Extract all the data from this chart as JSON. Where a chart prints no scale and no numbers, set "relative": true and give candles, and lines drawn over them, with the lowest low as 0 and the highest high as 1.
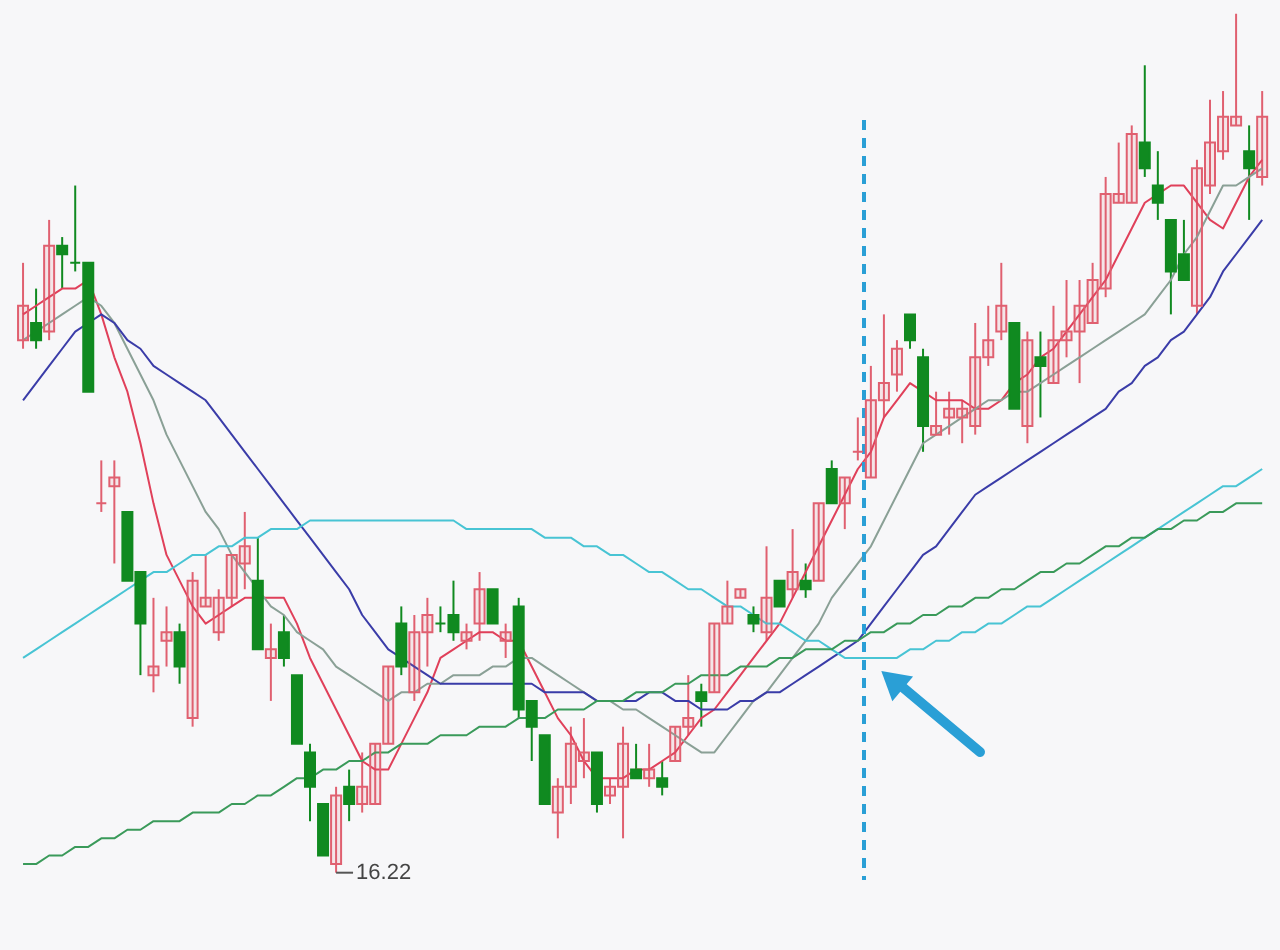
{
  "chart_data": {
    "type": "candlestick",
    "relative": true,
    "tick_labels": false,
    "categories": [
      null,
      null,
      null,
      null,
      null,
      null,
      null,
      null,
      null,
      null,
      null,
      null,
      null,
      null,
      null,
      null,
      null,
      null,
      null,
      null,
      null,
      null,
      null,
      null,
      null,
      null,
      null,
      null,
      null,
      null,
      null,
      null,
      null,
      null,
      null,
      null,
      null,
      null,
      null,
      null,
      null,
      null,
      null,
      null,
      null,
      null,
      null,
      null,
      null,
      null,
      null,
      null,
      null,
      null,
      null,
      null,
      null,
      null,
      null,
      null,
      null,
      null,
      null,
      null,
      null,
      null,
      null,
      null,
      null,
      null,
      null,
      null,
      null,
      null,
      null,
      null,
      null,
      null,
      null,
      null,
      null,
      null,
      null,
      null,
      null,
      null,
      null,
      null,
      null,
      null,
      null,
      null,
      null,
      null,
      null,
      null
    ],
    "ohlc": [
      [
        0.62,
        0.71,
        0.61,
        0.66
      ],
      [
        0.64,
        0.68,
        0.61,
        0.62
      ],
      [
        0.63,
        0.76,
        0.62,
        0.73
      ],
      [
        0.73,
        0.74,
        0.68,
        0.72
      ],
      [
        0.71,
        0.8,
        0.7,
        0.71
      ],
      [
        0.71,
        0.71,
        0.56,
        0.56
      ],
      [
        0.43,
        0.48,
        0.42,
        0.43
      ],
      [
        0.45,
        0.48,
        0.36,
        0.46
      ],
      [
        0.42,
        0.42,
        0.34,
        0.34
      ],
      [
        0.35,
        0.35,
        0.23,
        0.29
      ],
      [
        0.23,
        0.32,
        0.21,
        0.24
      ],
      [
        0.27,
        0.31,
        0.24,
        0.28
      ],
      [
        0.28,
        0.29,
        0.22,
        0.24
      ],
      [
        0.18,
        0.35,
        0.17,
        0.34
      ],
      [
        0.31,
        0.37,
        0.31,
        0.32
      ],
      [
        0.28,
        0.33,
        0.27,
        0.32
      ],
      [
        0.32,
        0.37,
        0.31,
        0.37
      ],
      [
        0.36,
        0.42,
        0.33,
        0.38
      ],
      [
        0.34,
        0.39,
        0.26,
        0.26
      ],
      [
        0.25,
        0.29,
        0.2,
        0.26
      ],
      [
        0.28,
        0.3,
        0.24,
        0.25
      ],
      [
        0.23,
        0.23,
        0.15,
        0.15
      ],
      [
        0.14,
        0.15,
        0.06,
        0.1
      ],
      [
        0.08,
        0.08,
        0.02,
        0.02
      ],
      [
        0.01,
        0.1,
        0.0,
        0.09
      ],
      [
        0.1,
        0.12,
        0.06,
        0.08
      ],
      [
        0.08,
        0.14,
        0.07,
        0.1
      ],
      [
        0.08,
        0.15,
        0.08,
        0.15
      ],
      [
        0.15,
        0.24,
        0.15,
        0.24
      ],
      [
        0.29,
        0.31,
        0.23,
        0.24
      ],
      [
        0.21,
        0.3,
        0.2,
        0.28
      ],
      [
        0.28,
        0.32,
        0.24,
        0.3
      ],
      [
        0.29,
        0.31,
        0.28,
        0.29
      ],
      [
        0.3,
        0.34,
        0.27,
        0.28
      ],
      [
        0.27,
        0.29,
        0.26,
        0.28
      ],
      [
        0.29,
        0.35,
        0.27,
        0.33
      ],
      [
        0.33,
        0.33,
        0.29,
        0.29
      ],
      [
        0.27,
        0.29,
        0.25,
        0.28
      ],
      [
        0.31,
        0.32,
        0.18,
        0.19
      ],
      [
        0.2,
        0.2,
        0.13,
        0.17
      ],
      [
        0.16,
        0.16,
        0.08,
        0.08
      ],
      [
        0.07,
        0.11,
        0.04,
        0.1
      ],
      [
        0.1,
        0.17,
        0.08,
        0.15
      ],
      [
        0.13,
        0.18,
        0.11,
        0.14
      ],
      [
        0.14,
        0.14,
        0.07,
        0.08
      ],
      [
        0.09,
        0.11,
        0.08,
        0.1
      ],
      [
        0.1,
        0.17,
        0.04,
        0.15
      ],
      [
        0.12,
        0.15,
        0.11,
        0.11
      ],
      [
        0.11,
        0.15,
        0.1,
        0.12
      ],
      [
        0.11,
        0.13,
        0.09,
        0.1
      ],
      [
        0.13,
        0.17,
        0.13,
        0.17
      ],
      [
        0.17,
        0.23,
        0.16,
        0.18
      ],
      [
        0.21,
        0.22,
        0.17,
        0.2
      ],
      [
        0.21,
        0.29,
        0.21,
        0.29
      ],
      [
        0.29,
        0.34,
        0.29,
        0.31
      ],
      [
        0.32,
        0.33,
        0.32,
        0.33
      ],
      [
        0.3,
        0.31,
        0.28,
        0.29
      ],
      [
        0.28,
        0.38,
        0.27,
        0.32
      ],
      [
        0.34,
        0.34,
        0.31,
        0.31
      ],
      [
        0.33,
        0.4,
        0.32,
        0.35
      ],
      [
        0.34,
        0.36,
        0.32,
        0.33
      ],
      [
        0.34,
        0.43,
        0.34,
        0.43
      ],
      [
        0.47,
        0.48,
        0.43,
        0.43
      ],
      [
        0.43,
        0.46,
        0.4,
        0.46
      ],
      [
        0.49,
        0.53,
        0.48,
        0.49
      ],
      [
        0.46,
        0.59,
        0.46,
        0.55
      ],
      [
        0.55,
        0.65,
        0.53,
        0.57
      ],
      [
        0.58,
        0.62,
        0.56,
        0.61
      ],
      [
        0.65,
        0.65,
        0.61,
        0.62
      ],
      [
        0.6,
        0.61,
        0.49,
        0.52
      ],
      [
        0.51,
        0.56,
        0.51,
        0.52
      ],
      [
        0.53,
        0.56,
        0.51,
        0.54
      ],
      [
        0.53,
        0.55,
        0.5,
        0.54
      ],
      [
        0.52,
        0.64,
        0.51,
        0.6
      ],
      [
        0.6,
        0.66,
        0.59,
        0.62
      ],
      [
        0.63,
        0.71,
        0.62,
        0.66
      ],
      [
        0.64,
        0.64,
        0.54,
        0.54
      ],
      [
        0.52,
        0.63,
        0.5,
        0.62
      ],
      [
        0.6,
        0.63,
        0.53,
        0.59
      ],
      [
        0.57,
        0.66,
        0.57,
        0.62
      ],
      [
        0.62,
        0.69,
        0.6,
        0.63
      ],
      [
        0.63,
        0.69,
        0.57,
        0.66
      ],
      [
        0.64,
        0.71,
        0.64,
        0.69
      ],
      [
        0.68,
        0.81,
        0.67,
        0.79
      ],
      [
        0.78,
        0.85,
        0.78,
        0.79
      ],
      [
        0.78,
        0.87,
        0.78,
        0.86
      ],
      [
        0.85,
        0.94,
        0.81,
        0.82
      ],
      [
        0.8,
        0.84,
        0.76,
        0.78
      ],
      [
        0.76,
        0.76,
        0.65,
        0.7
      ],
      [
        0.72,
        0.76,
        0.69,
        0.69
      ],
      [
        0.66,
        0.83,
        0.65,
        0.82
      ],
      [
        0.8,
        0.9,
        0.79,
        0.85
      ],
      [
        0.84,
        0.91,
        0.83,
        0.88
      ],
      [
        0.87,
        1.0,
        0.87,
        0.88
      ],
      [
        0.84,
        0.87,
        0.76,
        0.82
      ],
      [
        0.81,
        0.91,
        0.8,
        0.88
      ]
    ],
    "colors": [
      "#e06070",
      "#108a20",
      "#e06070",
      "#108a20",
      "#108a20",
      "#108a20",
      "#e06070",
      "#e06070",
      "#108a20",
      "#108a20",
      "#e06070",
      "#e06070",
      "#108a20",
      "#e06070",
      "#e06070",
      "#e06070",
      "#e06070",
      "#e06070",
      "#108a20",
      "#e06070",
      "#108a20",
      "#108a20",
      "#108a20",
      "#108a20",
      "#e06070",
      "#108a20",
      "#e06070",
      "#e06070",
      "#e06070",
      "#108a20",
      "#e06070",
      "#e06070",
      "#108a20",
      "#108a20",
      "#e06070",
      "#e06070",
      "#108a20",
      "#e06070",
      "#108a20",
      "#108a20",
      "#108a20",
      "#e06070",
      "#e06070",
      "#e06070",
      "#108a20",
      "#e06070",
      "#e06070",
      "#108a20",
      "#e06070",
      "#108a20",
      "#e06070",
      "#e06070",
      "#108a20",
      "#e06070",
      "#e06070",
      "#e06070",
      "#108a20",
      "#e06070",
      "#108a20",
      "#e06070",
      "#108a20",
      "#e06070",
      "#108a20",
      "#e06070",
      "#e06070",
      "#e06070",
      "#e06070",
      "#e06070",
      "#108a20",
      "#108a20",
      "#e06070",
      "#e06070",
      "#e06070",
      "#e06070",
      "#e06070",
      "#e06070",
      "#108a20",
      "#e06070",
      "#108a20",
      "#e06070",
      "#e06070",
      "#e06070",
      "#e06070",
      "#e06070",
      "#e06070",
      "#e06070",
      "#108a20",
      "#108a20",
      "#108a20",
      "#108a20",
      "#e06070",
      "#e06070",
      "#e06070",
      "#e06070",
      "#108a20",
      "#e06070"
    ],
    "series": [
      {
        "type": "line",
        "color": "#e0405a",
        "values": [
          0.65,
          0.66,
          0.67,
          0.68,
          0.68,
          0.69,
          0.65,
          0.6,
          0.56,
          0.5,
          0.43,
          0.37,
          0.34,
          0.31,
          0.29,
          0.3,
          0.31,
          0.32,
          0.32,
          0.32,
          0.32,
          0.29,
          0.25,
          0.22,
          0.19,
          0.16,
          0.13,
          0.12,
          0.12,
          0.15,
          0.18,
          0.21,
          0.25,
          0.26,
          0.27,
          0.28,
          0.28,
          0.27,
          0.27,
          0.24,
          0.21,
          0.18,
          0.16,
          0.13,
          0.11,
          0.11,
          0.11,
          0.12,
          0.12,
          0.13,
          0.14,
          0.16,
          0.18,
          0.19,
          0.21,
          0.23,
          0.25,
          0.27,
          0.29,
          0.32,
          0.35,
          0.38,
          0.41,
          0.44,
          0.47,
          0.49,
          0.53,
          0.55,
          0.57,
          0.56,
          0.55,
          0.55,
          0.55,
          0.54,
          0.54,
          0.55,
          0.57,
          0.58,
          0.6,
          0.61,
          0.63,
          0.65,
          0.67,
          0.69,
          0.72,
          0.75,
          0.78,
          0.79,
          0.8,
          0.8,
          0.78,
          0.76,
          0.75,
          0.78,
          0.81,
          0.83
        ]
      },
      {
        "type": "line",
        "color": "#8aa096",
        "values": [
          0.62,
          0.63,
          0.64,
          0.65,
          0.66,
          0.67,
          0.66,
          0.64,
          0.61,
          0.58,
          0.55,
          0.51,
          0.48,
          0.45,
          0.42,
          0.4,
          0.37,
          0.35,
          0.33,
          0.31,
          0.3,
          0.28,
          0.27,
          0.26,
          0.24,
          0.23,
          0.22,
          0.21,
          0.2,
          0.21,
          0.21,
          0.22,
          0.22,
          0.23,
          0.23,
          0.23,
          0.24,
          0.24,
          0.25,
          0.25,
          0.24,
          0.23,
          0.22,
          0.21,
          0.2,
          0.2,
          0.19,
          0.19,
          0.18,
          0.17,
          0.16,
          0.15,
          0.14,
          0.14,
          0.16,
          0.18,
          0.2,
          0.21,
          0.23,
          0.25,
          0.27,
          0.29,
          0.32,
          0.34,
          0.36,
          0.38,
          0.41,
          0.44,
          0.47,
          0.5,
          0.51,
          0.52,
          0.53,
          0.54,
          0.55,
          0.55,
          0.56,
          0.56,
          0.57,
          0.58,
          0.59,
          0.6,
          0.61,
          0.62,
          0.63,
          0.64,
          0.65,
          0.67,
          0.69,
          0.72,
          0.74,
          0.77,
          0.8,
          0.8,
          0.81,
          0.82
        ]
      },
      {
        "type": "line",
        "color": "#3a3ca8",
        "values": [
          0.55,
          0.57,
          0.59,
          0.61,
          0.63,
          0.64,
          0.65,
          0.64,
          0.62,
          0.61,
          0.59,
          0.58,
          0.57,
          0.56,
          0.55,
          0.53,
          0.51,
          0.49,
          0.47,
          0.45,
          0.43,
          0.41,
          0.39,
          0.37,
          0.35,
          0.33,
          0.3,
          0.28,
          0.26,
          0.25,
          0.24,
          0.23,
          0.22,
          0.22,
          0.22,
          0.22,
          0.22,
          0.22,
          0.22,
          0.22,
          0.21,
          0.21,
          0.21,
          0.21,
          0.2,
          0.2,
          0.2,
          0.2,
          0.21,
          0.21,
          0.2,
          0.2,
          0.19,
          0.19,
          0.19,
          0.2,
          0.2,
          0.21,
          0.21,
          0.22,
          0.23,
          0.24,
          0.25,
          0.26,
          0.27,
          0.29,
          0.31,
          0.33,
          0.35,
          0.37,
          0.38,
          0.4,
          0.42,
          0.44,
          0.45,
          0.46,
          0.47,
          0.48,
          0.49,
          0.5,
          0.51,
          0.52,
          0.53,
          0.54,
          0.56,
          0.57,
          0.59,
          0.6,
          0.62,
          0.63,
          0.65,
          0.67,
          0.7,
          0.72,
          0.74,
          0.76
        ]
      },
      {
        "type": "line",
        "color": "#48c4d4",
        "values": [
          0.25,
          0.26,
          0.27,
          0.28,
          0.29,
          0.3,
          0.31,
          0.32,
          0.33,
          0.34,
          0.35,
          0.35,
          0.36,
          0.37,
          0.37,
          0.38,
          0.38,
          0.39,
          0.39,
          0.4,
          0.4,
          0.4,
          0.41,
          0.41,
          0.41,
          0.41,
          0.41,
          0.41,
          0.41,
          0.41,
          0.41,
          0.41,
          0.41,
          0.41,
          0.4,
          0.4,
          0.4,
          0.4,
          0.4,
          0.4,
          0.39,
          0.39,
          0.39,
          0.38,
          0.38,
          0.37,
          0.37,
          0.36,
          0.35,
          0.35,
          0.34,
          0.33,
          0.33,
          0.32,
          0.31,
          0.31,
          0.3,
          0.29,
          0.29,
          0.28,
          0.27,
          0.27,
          0.26,
          0.25,
          0.25,
          0.25,
          0.25,
          0.25,
          0.26,
          0.26,
          0.27,
          0.27,
          0.28,
          0.28,
          0.29,
          0.29,
          0.3,
          0.31,
          0.31,
          0.32,
          0.33,
          0.34,
          0.35,
          0.36,
          0.37,
          0.38,
          0.39,
          0.4,
          0.41,
          0.42,
          0.43,
          0.44,
          0.45,
          0.45,
          0.46,
          0.47
        ]
      },
      {
        "type": "line",
        "color": "#3a9a5a",
        "values": [
          0.01,
          0.01,
          0.02,
          0.02,
          0.03,
          0.03,
          0.04,
          0.04,
          0.05,
          0.05,
          0.06,
          0.06,
          0.06,
          0.07,
          0.07,
          0.07,
          0.08,
          0.08,
          0.09,
          0.09,
          0.1,
          0.11,
          0.11,
          0.12,
          0.12,
          0.13,
          0.13,
          0.14,
          0.14,
          0.15,
          0.15,
          0.15,
          0.16,
          0.16,
          0.16,
          0.17,
          0.17,
          0.17,
          0.18,
          0.18,
          0.18,
          0.19,
          0.19,
          0.19,
          0.2,
          0.2,
          0.2,
          0.21,
          0.21,
          0.21,
          0.22,
          0.22,
          0.23,
          0.23,
          0.23,
          0.24,
          0.24,
          0.24,
          0.25,
          0.25,
          0.26,
          0.26,
          0.26,
          0.27,
          0.27,
          0.28,
          0.28,
          0.29,
          0.29,
          0.3,
          0.3,
          0.31,
          0.31,
          0.32,
          0.32,
          0.33,
          0.33,
          0.34,
          0.35,
          0.35,
          0.36,
          0.36,
          0.37,
          0.38,
          0.38,
          0.39,
          0.39,
          0.4,
          0.4,
          0.41,
          0.41,
          0.42,
          0.42,
          0.43,
          0.43,
          0.43
        ]
      }
    ],
    "annotations": [
      "16.22"
    ]
  }
}
